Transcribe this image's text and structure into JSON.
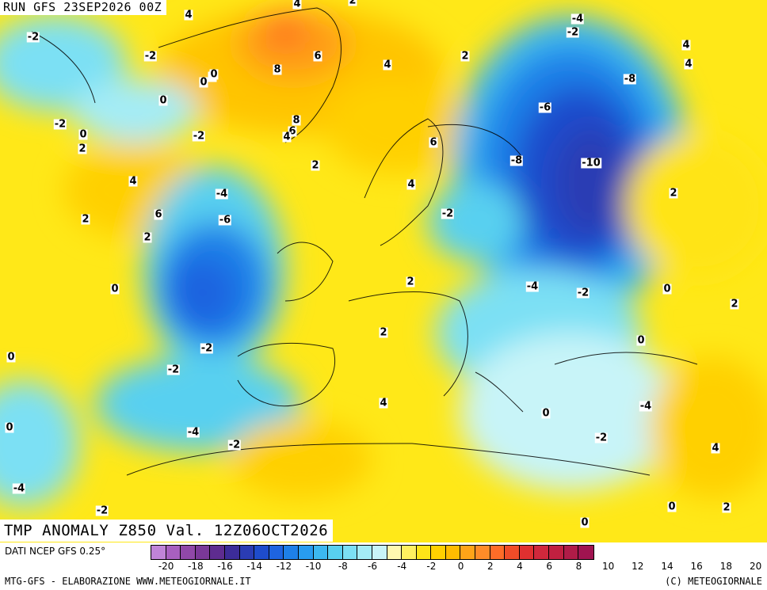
{
  "header": {
    "run_title": "RUN GFS 23SEP2026 00Z",
    "field_title": "TMP ANOMALY Z850 Val. 12Z06OCT2026"
  },
  "contour_labels": [
    "-2",
    "-2",
    "-2",
    "-4",
    "4",
    "4",
    "2",
    "8",
    "6",
    "2",
    "0",
    "2",
    "0",
    "-2",
    "0",
    "2",
    "-2",
    "8",
    "6",
    "4",
    "2",
    "4",
    "2",
    "6",
    "4",
    "-4",
    "-6",
    "4",
    "6",
    "2",
    "-2",
    "-8",
    "-6",
    "-8",
    "-10",
    "4",
    "4",
    "2",
    "0",
    "2",
    "0",
    "-4",
    "-2",
    "-4",
    "-2",
    "-2",
    "2",
    "2",
    "0",
    "4",
    "0",
    "-2",
    "-4",
    "-2",
    "0",
    "-2",
    "-4",
    "0",
    "0",
    "2",
    "4",
    "0",
    "0"
  ],
  "colors": {
    "scale": [
      "#c084d8",
      "#a860c0",
      "#9048a8",
      "#7a3898",
      "#5e2c90",
      "#3c2c98",
      "#2a3cb4",
      "#1e4ccc",
      "#1e64e0",
      "#1e80e8",
      "#289cf0",
      "#3cb8f0",
      "#58d0f0",
      "#7ce0f4",
      "#a4ecf6",
      "#c8f4f8",
      "#fff8b0",
      "#fff060",
      "#ffe418",
      "#ffd000",
      "#ffbc00",
      "#ffa418",
      "#ff8c28",
      "#ff6c28",
      "#f04c28",
      "#e03030",
      "#d0283c",
      "#c02040",
      "#b01c48",
      "#a01450"
    ],
    "land_border": "#000000"
  },
  "colorbar": {
    "source_label": "DATI NCEP GFS 0.25°",
    "tick_labels": [
      "-20",
      "-18",
      "-16",
      "-14",
      "-12",
      "-10",
      "-8",
      "-6",
      "-4",
      "-2",
      "0",
      "2",
      "4",
      "6",
      "8",
      "10",
      "12",
      "14",
      "16",
      "18",
      "20"
    ]
  },
  "footer": {
    "credit_left": "MTG-GFS - ELABORAZIONE WWW.METEOGIORNALE.IT",
    "credit_right": "(C) METEOGIORNALE"
  }
}
